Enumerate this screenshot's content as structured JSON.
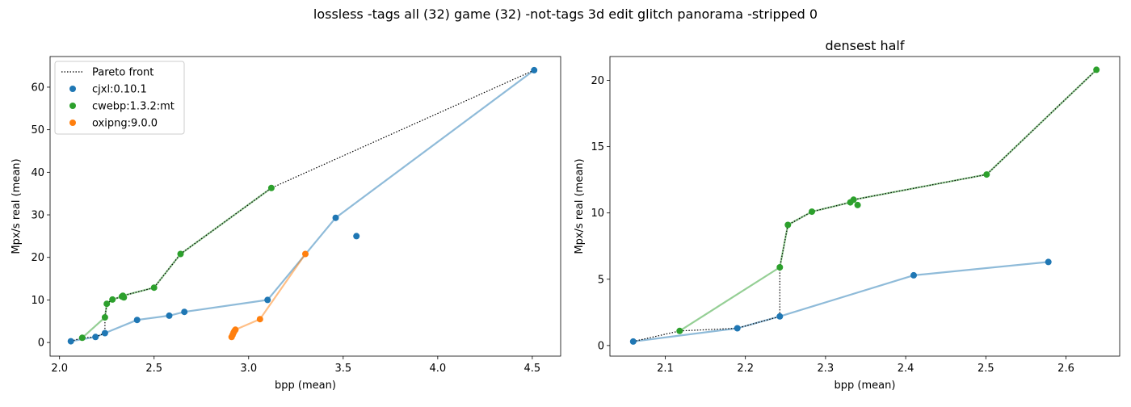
{
  "figure": {
    "suptitle": "lossless -tags all (32) game (32) -not-tags 3d edit glitch panorama -stripped 0"
  },
  "colors": {
    "cjxl": "#1f77b4",
    "cwebp": "#2ca02c",
    "oxipng": "#ff7f0e",
    "pareto": "#000000"
  },
  "chart_data": [
    {
      "type": "scatter",
      "title": "",
      "xlabel": "bpp (mean)",
      "ylabel": "Mpx/s real (mean)",
      "xlim": [
        1.95,
        4.65
      ],
      "ylim": [
        -3.2,
        67.2
      ],
      "xticks": [
        2.0,
        2.5,
        3.0,
        3.5,
        4.0,
        4.5
      ],
      "xtick_labels": [
        "2.0",
        "2.5",
        "3.0",
        "3.5",
        "4.0",
        "4.5"
      ],
      "yticks": [
        0,
        10,
        20,
        30,
        40,
        50,
        60
      ],
      "ytick_labels": [
        "0",
        "10",
        "20",
        "30",
        "40",
        "50",
        "60"
      ],
      "legend": {
        "position": "top-left",
        "entries": [
          {
            "label": "Pareto front",
            "kind": "line",
            "color_key": "pareto"
          },
          {
            "label": "cjxl:0.10.1",
            "kind": "marker",
            "color_key": "cjxl"
          },
          {
            "label": "cwebp:1.3.2:mt",
            "kind": "marker",
            "color_key": "cwebp"
          },
          {
            "label": "oxipng:9.0.0",
            "kind": "marker",
            "color_key": "oxipng"
          }
        ]
      },
      "series": [
        {
          "name": "cjxl:0.10.1",
          "color_key": "cjxl",
          "points": [
            [
              2.06,
              0.3
            ],
            [
              2.19,
              1.3
            ],
            [
              2.24,
              2.2
            ],
            [
              2.41,
              5.3
            ],
            [
              2.58,
              6.3
            ],
            [
              2.66,
              7.2
            ],
            [
              3.1,
              10.0
            ],
            [
              3.46,
              29.3
            ],
            [
              4.51,
              64.0
            ],
            [
              3.57,
              25.0
            ]
          ],
          "line": [
            [
              2.06,
              0.3
            ],
            [
              2.19,
              1.3
            ],
            [
              2.24,
              2.2
            ],
            [
              2.41,
              5.3
            ],
            [
              2.58,
              6.3
            ],
            [
              2.66,
              7.2
            ],
            [
              3.1,
              10.0
            ],
            [
              3.46,
              29.3
            ],
            [
              4.51,
              64.0
            ]
          ]
        },
        {
          "name": "cwebp:1.3.2:mt",
          "color_key": "cwebp",
          "points": [
            [
              2.12,
              1.1
            ],
            [
              2.24,
              5.9
            ],
            [
              2.25,
              9.1
            ],
            [
              2.28,
              10.1
            ],
            [
              2.33,
              10.8
            ],
            [
              2.335,
              11.0
            ],
            [
              2.34,
              10.6
            ],
            [
              2.5,
              12.9
            ],
            [
              2.64,
              20.8
            ],
            [
              3.12,
              36.3
            ]
          ],
          "line": [
            [
              2.12,
              1.1
            ],
            [
              2.24,
              5.9
            ],
            [
              2.25,
              9.1
            ],
            [
              2.28,
              10.1
            ],
            [
              2.33,
              10.8
            ],
            [
              2.335,
              11.0
            ],
            [
              2.5,
              12.9
            ],
            [
              2.64,
              20.8
            ],
            [
              3.12,
              36.3
            ]
          ]
        },
        {
          "name": "oxipng:9.0.0",
          "color_key": "oxipng",
          "points": [
            [
              2.91,
              1.3
            ],
            [
              2.915,
              1.8
            ],
            [
              2.92,
              2.3
            ],
            [
              2.925,
              2.7
            ],
            [
              2.93,
              3.0
            ],
            [
              3.06,
              5.5
            ],
            [
              3.3,
              20.8
            ]
          ],
          "line": [
            [
              2.91,
              1.3
            ],
            [
              2.915,
              1.8
            ],
            [
              2.92,
              2.3
            ],
            [
              2.925,
              2.7
            ],
            [
              2.93,
              3.0
            ],
            [
              3.06,
              5.5
            ],
            [
              3.3,
              20.8
            ]
          ]
        }
      ],
      "pareto": [
        [
          2.06,
          0.3
        ],
        [
          2.12,
          1.1
        ],
        [
          2.19,
          1.3
        ],
        [
          2.24,
          2.2
        ],
        [
          2.24,
          5.9
        ],
        [
          2.25,
          9.1
        ],
        [
          2.28,
          10.1
        ],
        [
          2.33,
          10.8
        ],
        [
          2.335,
          11.0
        ],
        [
          2.5,
          12.9
        ],
        [
          2.64,
          20.8
        ],
        [
          3.12,
          36.3
        ],
        [
          4.51,
          64.0
        ]
      ]
    },
    {
      "type": "scatter",
      "title": "densest half",
      "xlabel": "bpp (mean)",
      "ylabel": "Mpx/s real (mean)",
      "xlim": [
        2.031,
        2.667
      ],
      "ylim": [
        -0.8,
        21.8
      ],
      "xticks": [
        2.1,
        2.2,
        2.3,
        2.4,
        2.5,
        2.6
      ],
      "xtick_labels": [
        "2.1",
        "2.2",
        "2.3",
        "2.4",
        "2.5",
        "2.6"
      ],
      "yticks": [
        0,
        5,
        10,
        15,
        20
      ],
      "ytick_labels": [
        "0",
        "5",
        "10",
        "15",
        "20"
      ],
      "series": [
        {
          "name": "cjxl:0.10.1",
          "color_key": "cjxl",
          "points": [
            [
              2.06,
              0.3
            ],
            [
              2.19,
              1.3
            ],
            [
              2.243,
              2.2
            ],
            [
              2.41,
              5.3
            ],
            [
              2.578,
              6.3
            ]
          ],
          "line": [
            [
              2.06,
              0.3
            ],
            [
              2.19,
              1.3
            ],
            [
              2.243,
              2.2
            ],
            [
              2.41,
              5.3
            ],
            [
              2.578,
              6.3
            ]
          ]
        },
        {
          "name": "cwebp:1.3.2:mt",
          "color_key": "cwebp",
          "points": [
            [
              2.118,
              1.1
            ],
            [
              2.243,
              5.9
            ],
            [
              2.253,
              9.1
            ],
            [
              2.283,
              10.1
            ],
            [
              2.331,
              10.8
            ],
            [
              2.335,
              11.0
            ],
            [
              2.34,
              10.6
            ],
            [
              2.501,
              12.9
            ],
            [
              2.638,
              20.8
            ]
          ],
          "line": [
            [
              2.118,
              1.1
            ],
            [
              2.243,
              5.9
            ],
            [
              2.253,
              9.1
            ],
            [
              2.283,
              10.1
            ],
            [
              2.331,
              10.8
            ],
            [
              2.335,
              11.0
            ],
            [
              2.501,
              12.9
            ],
            [
              2.638,
              20.8
            ]
          ]
        }
      ],
      "pareto": [
        [
          2.06,
          0.3
        ],
        [
          2.118,
          1.1
        ],
        [
          2.19,
          1.3
        ],
        [
          2.243,
          2.2
        ],
        [
          2.243,
          5.9
        ],
        [
          2.253,
          9.1
        ],
        [
          2.283,
          10.1
        ],
        [
          2.331,
          10.8
        ],
        [
          2.335,
          11.0
        ],
        [
          2.501,
          12.9
        ],
        [
          2.638,
          20.8
        ]
      ]
    }
  ]
}
